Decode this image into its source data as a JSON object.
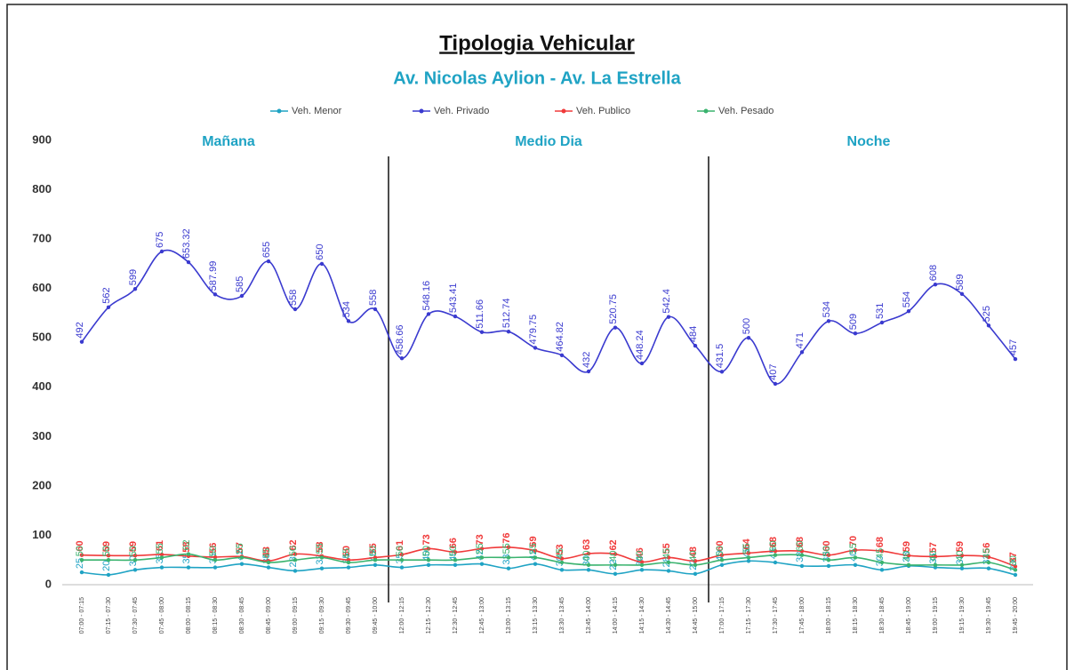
{
  "chart_data": {
    "type": "line",
    "title": "Tipologia Vehicular",
    "subtitle": "Av. Nicolas Aylion - Av. La Estrella",
    "annotations": [
      "Mañana",
      "Medio Dia",
      "Noche"
    ],
    "categories": [
      "07:00 - 07:15",
      "07:15 - 07:30",
      "07:30 - 07:45",
      "07:45 - 08:00",
      "08:00 - 08:15",
      "08:15 - 08:30",
      "08:30 - 08:45",
      "08:45 - 09:00",
      "09:00 - 09:15",
      "09:15 - 09:30",
      "09:30 - 09:45",
      "09:45 - 10:00",
      "12:00 - 12:15",
      "12:15 - 12:30",
      "12:30 - 12:45",
      "12:45 - 13:00",
      "13:00 - 13:15",
      "13:15 - 13:30",
      "13:30 - 13:45",
      "13:45 - 14:00",
      "14:00 - 14:15",
      "14:15 - 14:30",
      "14:30 - 14:45",
      "14:45 - 15:00",
      "17:00 - 17:15",
      "17:15 - 17:30",
      "17:30 - 17:45",
      "17:45 - 18:00",
      "18:00 - 18:15",
      "18:15 - 18:30",
      "18:30 - 18:45",
      "18:45 - 19:00",
      "19:00 - 19:15",
      "19:15 - 19:30",
      "19:30 - 19:45",
      "19:45 - 20:00"
    ],
    "series": [
      {
        "name": "Veh. Menor",
        "color": "#1fa3c4",
        "values": [
          25,
          20,
          30,
          35,
          35,
          35,
          42,
          35,
          28,
          33,
          35,
          40,
          35,
          40,
          40,
          42,
          33,
          42,
          30,
          30,
          22,
          30,
          28,
          22,
          40,
          48,
          45,
          38,
          38,
          40,
          30,
          38,
          35,
          33,
          33,
          20
        ]
      },
      {
        "name": "Veh. Privado",
        "color": "#3a3acf",
        "values": [
          492,
          562,
          599,
          675,
          653.32,
          587.99,
          585,
          655,
          558,
          650,
          534,
          558,
          458.66,
          548.16,
          543.41,
          511.66,
          512.74,
          479.75,
          464.82,
          432,
          520.75,
          448.24,
          542.4,
          484,
          431.5,
          500,
          407,
          471,
          534,
          509,
          531,
          554,
          608,
          589,
          525,
          457
        ]
      },
      {
        "name": "Veh. Publico",
        "color": "#f03a3a",
        "values": [
          60,
          59,
          59,
          61,
          58,
          56,
          57,
          48,
          62,
          58,
          50,
          55,
          61,
          73,
          66,
          73,
          76,
          69,
          53,
          63,
          62,
          46,
          55,
          48,
          60,
          64,
          68,
          68,
          60,
          70,
          68,
          59,
          57,
          59,
          56,
          37
        ]
      },
      {
        "name": "Veh. Pesado",
        "color": "#3ab36e",
        "values": [
          50,
          50,
          50,
          55,
          62,
          50,
          55,
          45,
          50,
          55,
          45,
          50,
          50,
          50,
          50,
          55,
          55,
          55,
          45,
          40,
          40,
          40,
          45,
          40,
          50,
          55,
          60,
          60,
          50,
          55,
          45,
          40,
          40,
          40,
          45,
          30
        ]
      }
    ],
    "ylim": [
      0,
      900
    ],
    "yticks": [
      0,
      100,
      200,
      300,
      400,
      500,
      600,
      700,
      800,
      900
    ],
    "grid": false,
    "legend": "top"
  }
}
